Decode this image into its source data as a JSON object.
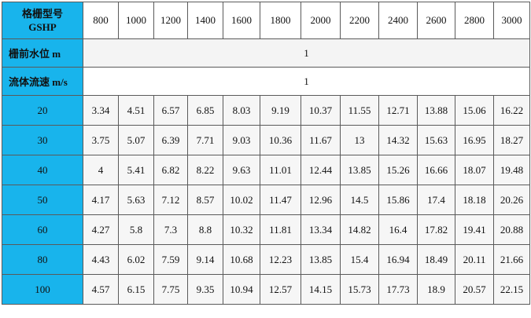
{
  "table": {
    "corner": [
      "格栅型号",
      "GSHP"
    ],
    "columns": [
      "800",
      "1000",
      "1200",
      "1400",
      "1600",
      "1800",
      "2000",
      "2200",
      "2400",
      "2600",
      "2800",
      "3000"
    ],
    "span_rows": [
      {
        "label": "栅前水位  m",
        "value": "1"
      },
      {
        "label": "流体流速  m/s",
        "value": "1"
      }
    ],
    "rows": [
      {
        "label": "20",
        "values": [
          "3.34",
          "4.51",
          "6.57",
          "6.85",
          "8.03",
          "9.19",
          "10.37",
          "11.55",
          "12.71",
          "13.88",
          "15.06",
          "16.22"
        ]
      },
      {
        "label": "30",
        "values": [
          "3.75",
          "5.07",
          "6.39",
          "7.71",
          "9.03",
          "10.36",
          "11.67",
          "13",
          "14.32",
          "15.63",
          "16.95",
          "18.27"
        ]
      },
      {
        "label": "40",
        "values": [
          "4",
          "5.41",
          "6.82",
          "8.22",
          "9.63",
          "11.01",
          "12.44",
          "13.85",
          "15.26",
          "16.66",
          "18.07",
          "19.48"
        ]
      },
      {
        "label": "50",
        "values": [
          "4.17",
          "5.63",
          "7.12",
          "8.57",
          "10.02",
          "11.47",
          "12.96",
          "14.5",
          "15.86",
          "17.4",
          "18.18",
          "20.26"
        ]
      },
      {
        "label": "60",
        "values": [
          "4.27",
          "5.8",
          "7.3",
          "8.8",
          "10.32",
          "11.81",
          "13.34",
          "14.82",
          "16.4",
          "17.82",
          "19.41",
          "20.88"
        ]
      },
      {
        "label": "80",
        "values": [
          "4.43",
          "6.02",
          "7.59",
          "9.14",
          "10.68",
          "12.23",
          "13.85",
          "15.4",
          "16.94",
          "18.49",
          "20.11",
          "21.66"
        ]
      },
      {
        "label": "100",
        "values": [
          "4.57",
          "6.15",
          "7.75",
          "9.35",
          "10.94",
          "12.57",
          "14.15",
          "15.73",
          "17.73",
          "18.9",
          "20.57",
          "22.15"
        ]
      }
    ]
  }
}
